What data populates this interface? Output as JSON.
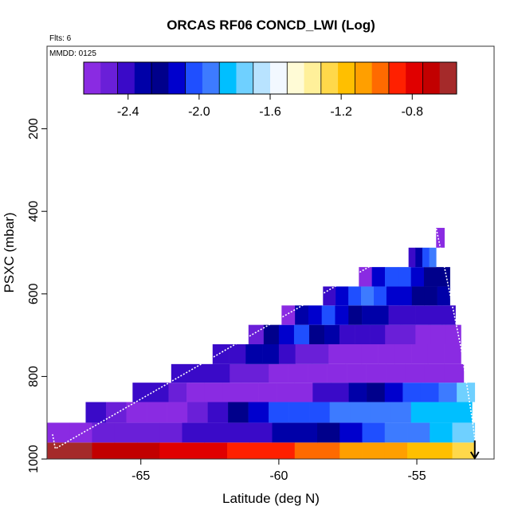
{
  "chart_data": {
    "type": "heatmap",
    "title": "ORCAS RF06 CONCD_LWI (Log)",
    "annotations": [
      "Flts: 6",
      "MMDD: 0125"
    ],
    "xlabel": "Latitude (deg N)",
    "ylabel": "PSXC (mbar)",
    "xlim": [
      -68.4,
      -52.2
    ],
    "ylim": [
      1000,
      0
    ],
    "y_reversed": true,
    "x_ticks": [
      -65,
      -60,
      -55
    ],
    "x_tick_labels": [
      "-65",
      "-60",
      "-55"
    ],
    "y_ticks": [
      200,
      400,
      600,
      800,
      1000
    ],
    "y_tick_labels": [
      "200",
      "400",
      "600",
      "800",
      "1000"
    ],
    "grid": false,
    "colorbar": {
      "placement": "top-inside",
      "range": [
        -2.65,
        -0.55
      ],
      "ticks": [
        -2.4,
        -2.0,
        -1.6,
        -1.2,
        -0.8
      ],
      "tick_labels": [
        "-2.4",
        "-2.0",
        "-1.6",
        "-1.2",
        "-0.8"
      ],
      "colors": [
        "#8a2be2",
        "#6a1fd8",
        "#3a0ac8",
        "#0000a8",
        "#00008b",
        "#0000cd",
        "#1f4fff",
        "#3d7bff",
        "#00bfff",
        "#6fd0ff",
        "#b8e3ff",
        "#f2f8ff",
        "#fffbd6",
        "#fff09a",
        "#ffd84a",
        "#ffbf00",
        "#ff9f00",
        "#ff6a00",
        "#ff2000",
        "#e00000",
        "#c20000",
        "#a52a2a"
      ]
    },
    "rows": [
      {
        "p_top": 960,
        "p_bot": 1000,
        "x_start": -68.4,
        "x_end": -52.9,
        "values": [
          -0.58,
          -0.62,
          -0.66,
          -0.7,
          -0.74,
          -0.78,
          -0.8,
          -0.82,
          -0.85,
          -0.88,
          -0.92,
          -0.96,
          -1.0,
          -1.04,
          -1.08,
          -1.12,
          -1.16,
          -1.2,
          -1.24
        ]
      },
      {
        "p_top": 912,
        "p_bot": 960,
        "x_start": -68.4,
        "x_end": -52.9,
        "values": [
          -2.62,
          -2.58,
          -2.55,
          -2.5,
          -2.47,
          -2.46,
          -2.45,
          -2.44,
          -2.42,
          -2.4,
          -2.36,
          -2.3,
          -2.24,
          -2.16,
          -2.05,
          -1.98,
          -1.92,
          -1.85,
          -1.76
        ]
      },
      {
        "p_top": 862,
        "p_bot": 912,
        "x_start": -67.0,
        "x_end": -53.0,
        "values": [
          -2.45,
          -2.55,
          -2.6,
          -2.62,
          -2.6,
          -2.5,
          -2.4,
          -2.2,
          -2.1,
          -2.05,
          -2.02,
          -2.0,
          -1.98,
          -1.95,
          -1.92,
          -1.9,
          -1.88,
          -1.85,
          -1.8
        ]
      },
      {
        "p_top": 815,
        "p_bot": 862,
        "x_start": -65.3,
        "x_end": -52.9,
        "values": [
          -2.4,
          -2.45,
          -2.55,
          -2.6,
          -2.62,
          -2.62,
          -2.6,
          -2.6,
          -2.58,
          -2.6,
          -2.45,
          -2.4,
          -2.3,
          -2.2,
          -2.1,
          -2.05,
          -2.0,
          -1.9,
          -1.75
        ]
      },
      {
        "p_top": 770,
        "p_bot": 815,
        "x_start": -63.9,
        "x_end": -53.3,
        "values": [
          -2.45,
          -2.42,
          -2.45,
          -2.5,
          -2.55,
          -2.58,
          -2.6,
          -2.6,
          -2.62,
          -2.62,
          -2.6,
          -2.6,
          -2.6,
          -2.58,
          -2.6
        ]
      },
      {
        "p_top": 722,
        "p_bot": 770,
        "x_start": -62.4,
        "x_end": -53.4,
        "values": [
          -2.45,
          -2.45,
          -2.35,
          -2.3,
          -2.45,
          -2.5,
          -2.55,
          -2.58,
          -2.6,
          -2.62,
          -2.6,
          -2.6,
          -2.6,
          -2.58,
          -2.62
        ]
      },
      {
        "p_top": 675,
        "p_bot": 722,
        "x_start": -61.1,
        "x_end": -53.4,
        "values": [
          -2.5,
          -2.2,
          -2.1,
          -2.05,
          -2.25,
          -2.35,
          -2.4,
          -2.42,
          -2.45,
          -2.5,
          -2.55,
          -2.58,
          -2.6,
          -2.62
        ]
      },
      {
        "p_top": 628,
        "p_bot": 675,
        "x_start": -59.9,
        "x_end": -53.6,
        "values": [
          -2.62,
          -2.3,
          -2.15,
          -2.05,
          -2.1,
          -2.2,
          -2.3,
          -2.35,
          -2.38,
          -2.4,
          -2.42,
          -2.42,
          -2.45
        ]
      },
      {
        "p_top": 582,
        "p_bot": 628,
        "x_start": -58.4,
        "x_end": -53.8,
        "values": [
          -2.45,
          -2.15,
          -2.0,
          -1.95,
          -2.0,
          -2.1,
          -2.15,
          -2.2,
          -2.25,
          -2.3
        ]
      },
      {
        "p_top": 535,
        "p_bot": 582,
        "x_start": -57.1,
        "x_end": -53.8,
        "values": [
          -2.6,
          -2.1,
          -2.0,
          -2.05,
          -2.1,
          -2.2,
          -2.25
        ]
      },
      {
        "p_top": 488,
        "p_bot": 535,
        "x_start": -55.3,
        "x_end": -54.3,
        "values": [
          -2.45,
          -2.3,
          -2.0,
          -1.95
        ]
      },
      {
        "p_top": 440,
        "p_bot": 488,
        "x_start": -54.3,
        "x_end": -54.0,
        "values": [
          -2.62
        ]
      }
    ],
    "flight_track": [
      [
        -68.2,
        940
      ],
      [
        -68.1,
        975
      ],
      [
        -54.3,
        440
      ],
      [
        -54.0,
        535
      ],
      [
        -53.4,
        730
      ],
      [
        -53.0,
        900
      ],
      [
        -52.9,
        950
      ],
      [
        -52.9,
        1000
      ]
    ]
  }
}
